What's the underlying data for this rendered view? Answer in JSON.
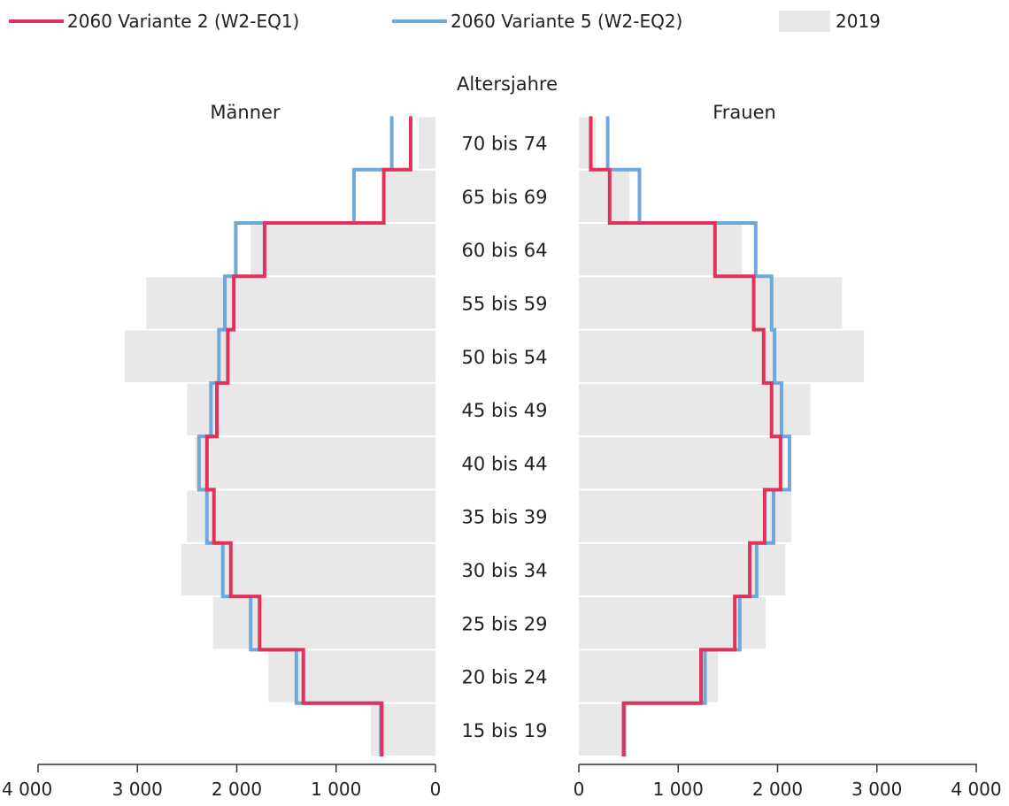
{
  "chart_data": {
    "type": "population-pyramid",
    "axis_title": "Altersjahre",
    "left_label": "Männer",
    "right_label": "Frauen",
    "age_groups": [
      "15 bis 19",
      "20 bis 24",
      "25 bis 29",
      "30 bis 34",
      "35 bis 39",
      "40 bis 44",
      "45 bis 49",
      "50 bis 54",
      "55 bis 59",
      "60 bis 64",
      "65 bis 69",
      "70 bis 74"
    ],
    "legend": [
      {
        "key": "v2",
        "label": "2060 Variante 2 (W2-EQ1)",
        "kind": "line",
        "color": "#e0325a"
      },
      {
        "key": "v5",
        "label": "2060 Variante 5 (W2-EQ2)",
        "kind": "line",
        "color": "#6fa8dc"
      },
      {
        "key": "base",
        "label": "2019",
        "kind": "bar",
        "color": "#e8e8e8"
      }
    ],
    "xlim": [
      0,
      4000
    ],
    "ticks": [
      {
        "value": 0,
        "label": "0"
      },
      {
        "value": 1000,
        "label": "1 000"
      },
      {
        "value": 2000,
        "label": "2 000"
      },
      {
        "value": 3000,
        "label": "3 000"
      },
      {
        "value": 4000,
        "label": "4 000"
      }
    ],
    "men": {
      "2019": [
        650,
        1680,
        2240,
        2560,
        2500,
        2420,
        2500,
        3130,
        2910,
        1860,
        500,
        170
      ],
      "2060 Variante 2 (W2-EQ1)": [
        540,
        1330,
        1770,
        2060,
        2230,
        2300,
        2200,
        2090,
        2030,
        1720,
        520,
        250
      ],
      "2060 Variante 5 (W2-EQ2)": [
        550,
        1400,
        1860,
        2140,
        2300,
        2380,
        2260,
        2180,
        2120,
        2010,
        820,
        440
      ]
    },
    "women": {
      "2019": [
        450,
        1400,
        1880,
        2080,
        2140,
        2070,
        2330,
        2870,
        2650,
        1640,
        510,
        170
      ],
      "2060 Variante 2 (W2-EQ1)": [
        450,
        1230,
        1570,
        1720,
        1870,
        2030,
        1940,
        1860,
        1760,
        1370,
        310,
        120
      ],
      "2060 Variante 5 (W2-EQ2)": [
        460,
        1270,
        1620,
        1790,
        1960,
        2120,
        2040,
        1970,
        1940,
        1780,
        610,
        290
      ]
    }
  }
}
